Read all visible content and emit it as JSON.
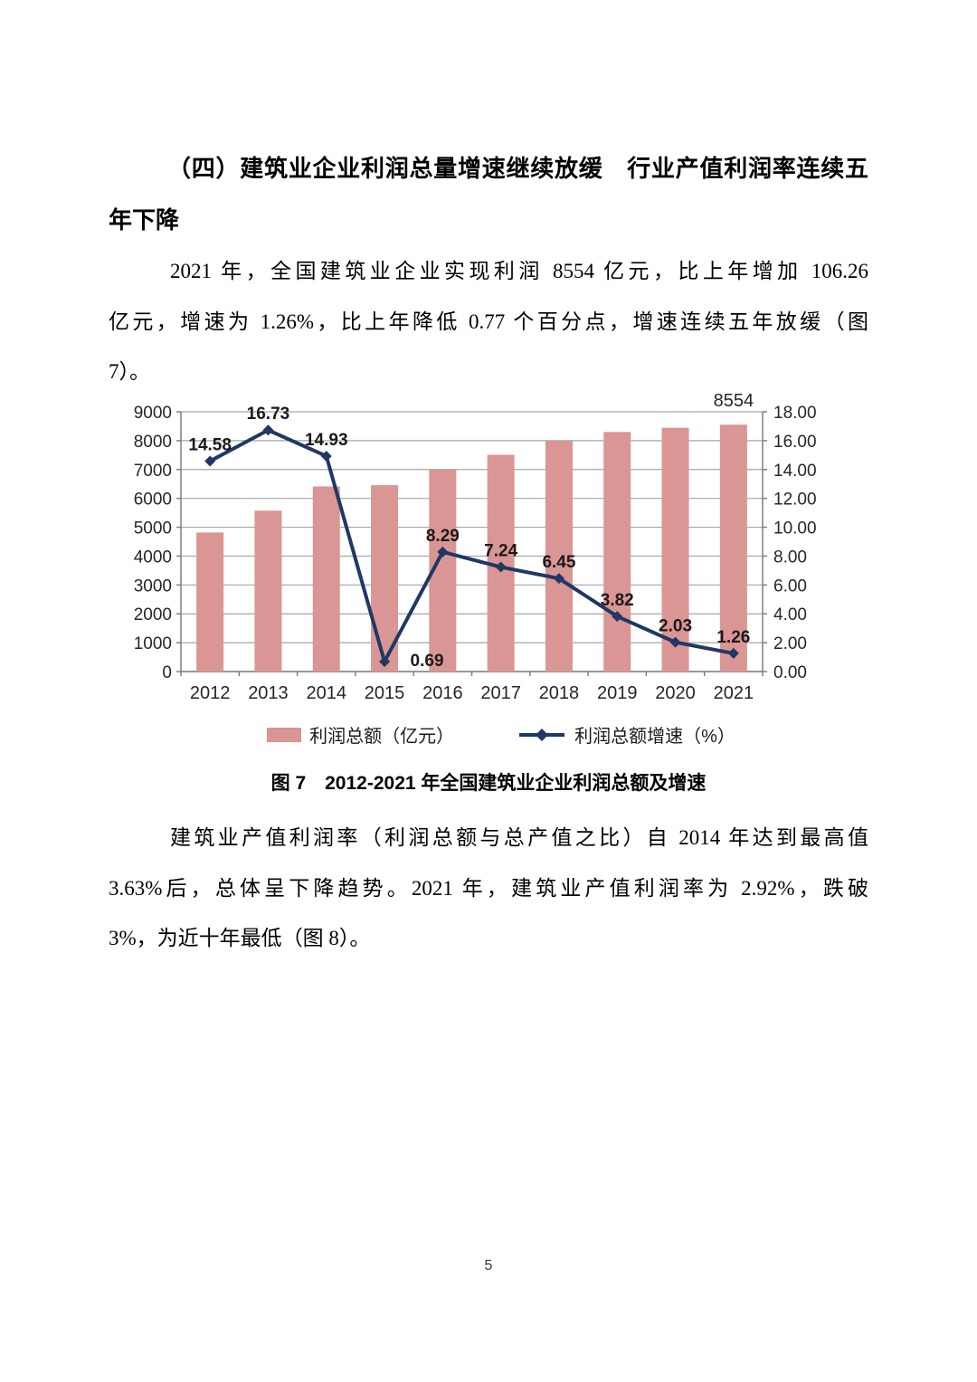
{
  "document": {
    "heading": {
      "line1": "（四）建筑业企业利润总量增速继续放缓　行业产值利润率连续五",
      "line2": "年下降"
    },
    "paragraph1_lines": [
      "2021 年，全国建筑业企业实现利润 8554 亿元，比上年增加 106.26",
      "亿元，增速为 1.26%，比上年降低 0.77 个百分点，增速连续五年放缓（图",
      "7）。"
    ],
    "figure_caption": "图 7　2012-2021 年全国建筑业企业利润总额及增速",
    "paragraph2_lines": [
      "建筑业产值利润率（利润总额与总产值之比）自 2014 年达到最高值",
      "3.63%后，总体呈下降趋势。2021 年，建筑业产值利润率为 2.92%，跌破",
      "3%，为近十年最低（图 8）。"
    ],
    "page_number": "5"
  },
  "chart_data": {
    "type": "bar",
    "title": "图 7　2012-2021 年全国建筑业企业利润总额及增速",
    "categories": [
      "2012",
      "2013",
      "2014",
      "2015",
      "2016",
      "2017",
      "2018",
      "2019",
      "2020",
      "2021"
    ],
    "series": [
      {
        "name": "利润总额（亿元）",
        "type": "bar",
        "axis": "left",
        "color": "#d99694",
        "values": [
          4818,
          5575,
          6413,
          6458,
          7004,
          7511,
          7996,
          8300,
          8448,
          8554
        ],
        "point_labels": [
          "",
          "",
          "",
          "",
          "",
          "",
          "",
          "",
          "",
          "8554"
        ]
      },
      {
        "name": "利润总额增速（%）",
        "type": "line",
        "axis": "right",
        "color": "#1f3864",
        "values": [
          14.58,
          16.73,
          14.93,
          0.69,
          8.29,
          7.24,
          6.45,
          3.82,
          2.03,
          1.26
        ],
        "point_labels": [
          "14.58",
          "16.73",
          "14.93",
          "0.69",
          "8.29",
          "7.24",
          "6.45",
          "3.82",
          "2.03",
          "1.26"
        ]
      }
    ],
    "left_axis": {
      "min": 0,
      "max": 9000,
      "step": 1000,
      "ticks": [
        "0",
        "1000",
        "2000",
        "3000",
        "4000",
        "5000",
        "6000",
        "7000",
        "8000",
        "9000"
      ]
    },
    "right_axis": {
      "min": 0,
      "max": 18,
      "step": 2,
      "decimals": 2,
      "ticks": [
        "0.00",
        "2.00",
        "4.00",
        "6.00",
        "8.00",
        "10.00",
        "12.00",
        "14.00",
        "16.00",
        "18.00"
      ]
    },
    "grid": "horizontal",
    "legend_position": "bottom"
  }
}
